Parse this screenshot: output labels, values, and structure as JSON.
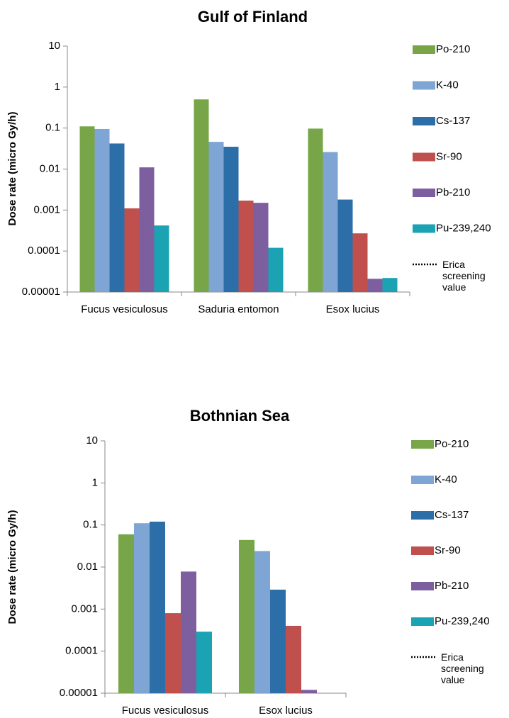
{
  "chart_data": [
    {
      "type": "bar",
      "title": "Gulf of Finland",
      "y_label": "Dose rate (micro Gy/h)",
      "log_scale": true,
      "categories": [
        "Fucus vesiculosus",
        "Saduria entomon",
        "Esox lucius"
      ],
      "series": [
        {
          "name": "Po-210",
          "color": "#77a548",
          "values": [
            0.11,
            0.5,
            0.097
          ]
        },
        {
          "name": "K-40",
          "color": "#7fa5d5",
          "values": [
            0.095,
            0.046,
            0.026
          ]
        },
        {
          "name": "Cs-137",
          "color": "#2c6ea8",
          "values": [
            0.042,
            0.035,
            0.0018
          ]
        },
        {
          "name": "Sr-90",
          "color": "#c0504d",
          "values": [
            0.0011,
            0.0017,
            0.00027
          ]
        },
        {
          "name": "Pb-210",
          "color": "#7d5fa0",
          "values": [
            0.011,
            0.0015,
            2.1e-05
          ]
        },
        {
          "name": "Pu-239,240",
          "color": "#1ba3b3",
          "values": [
            0.00042,
            0.00012,
            2.2e-05
          ]
        }
      ],
      "reference_line": {
        "name": "Erica screening value",
        "style": "dotted"
      },
      "ylim": [
        1e-05,
        10
      ],
      "yticks": [
        1e-05,
        0.0001,
        0.001,
        0.01,
        0.1,
        1,
        10
      ]
    },
    {
      "type": "bar",
      "title": "Bothnian Sea",
      "y_label": "Dose rate (micro Gy/h)",
      "log_scale": true,
      "categories": [
        "Fucus vesiculosus",
        "Esox lucius"
      ],
      "series": [
        {
          "name": "Po-210",
          "color": "#77a548",
          "values": [
            0.06,
            0.044
          ]
        },
        {
          "name": "K-40",
          "color": "#7fa5d5",
          "values": [
            0.11,
            0.024
          ]
        },
        {
          "name": "Cs-137",
          "color": "#2c6ea8",
          "values": [
            0.12,
            0.0029
          ]
        },
        {
          "name": "Sr-90",
          "color": "#c0504d",
          "values": [
            0.0008,
            0.0004
          ]
        },
        {
          "name": "Pb-210",
          "color": "#7d5fa0",
          "values": [
            0.0078,
            1.2e-05
          ]
        },
        {
          "name": "Pu-239,240",
          "color": "#1ba3b3",
          "values": [
            0.00029,
            null
          ]
        }
      ],
      "reference_line": {
        "name": "Erica screening value",
        "style": "dotted"
      },
      "ylim": [
        1e-05,
        10
      ],
      "yticks": [
        1e-05,
        0.0001,
        0.001,
        0.01,
        0.1,
        1,
        10
      ]
    }
  ]
}
